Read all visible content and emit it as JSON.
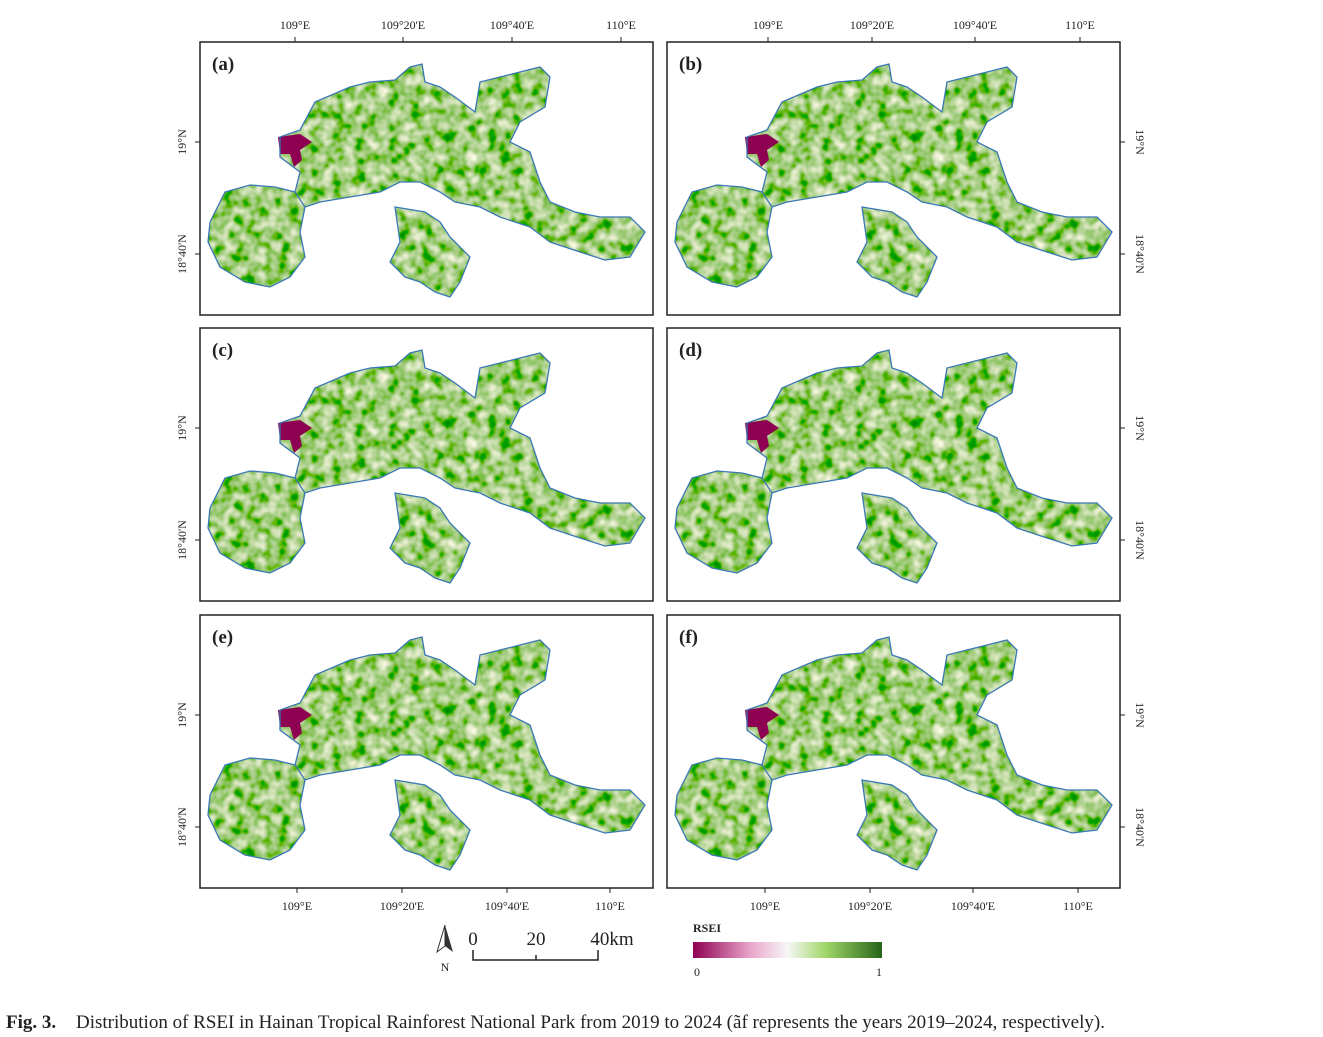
{
  "panels": [
    {
      "label": "(a)"
    },
    {
      "label": "(b)"
    },
    {
      "label": "(c)"
    },
    {
      "label": "(d)"
    },
    {
      "label": "(e)"
    },
    {
      "label": "(f)"
    }
  ],
  "top_axis": {
    "left": [
      "109°E",
      "109°20'E",
      "109°40'E",
      "110°E"
    ],
    "right": [
      "109°E",
      "109°20'E",
      "109°40'E",
      "110°E"
    ]
  },
  "bottom_axis": {
    "left": [
      "109°E",
      "109°20'E",
      "109°40'E",
      "110°E"
    ],
    "right": [
      "109°E",
      "109°20'E",
      "109°40'E",
      "110°E"
    ]
  },
  "lat_axis": {
    "left": [
      "19°N",
      "18°40'N"
    ],
    "right": [
      "19°N",
      "18°40'N"
    ]
  },
  "scale_bar": {
    "north": "N",
    "ticks": [
      "0",
      "20",
      "40km"
    ]
  },
  "legend": {
    "title": "RSEI",
    "min": "0",
    "max": "1"
  },
  "caption": {
    "label": "Fig. 3.",
    "text": "Distribution of RSEI in Hainan Tropical Rainforest National Park from 2019 to 2024 (ãf represents the years 2019–2024, respectively)."
  }
}
